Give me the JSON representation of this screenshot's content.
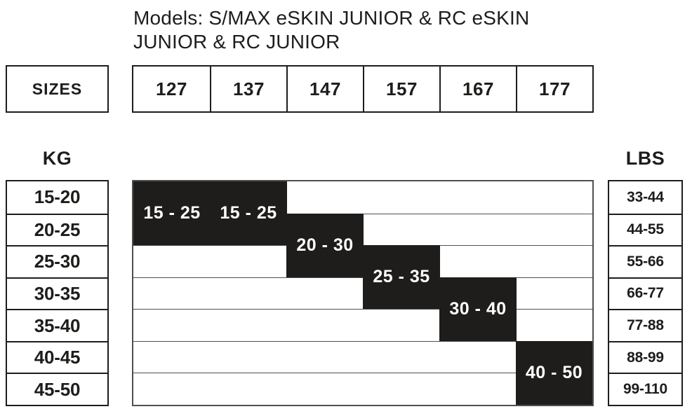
{
  "title": {
    "line1": "Models: S/MAX eSKIN JUNIOR & RC eSKIN",
    "line2": "JUNIOR & RC JUNIOR"
  },
  "sizes_header": "SIZES",
  "kg_header": "KG",
  "lbs_header": "LBS",
  "colors": {
    "ink": "#1d1d1b",
    "grid_line": "#4f4f4f",
    "block_bg": "#1f1c1c",
    "block_text": "#ffffff"
  },
  "chart_data": {
    "type": "table",
    "title": "Models: S/MAX eSKIN JUNIOR & RC eSKIN JUNIOR & RC JUNIOR",
    "columns": [
      "127",
      "137",
      "147",
      "157",
      "167",
      "177"
    ],
    "kg_rows": [
      "15-20",
      "20-25",
      "25-30",
      "30-35",
      "35-40",
      "40-45",
      "45-50"
    ],
    "lbs_rows": [
      "33-44",
      "44-55",
      "55-66",
      "66-77",
      "77-88",
      "88-99",
      "99-110"
    ],
    "blocks": [
      {
        "size": "127",
        "label": "15 - 25",
        "kg_min": 15,
        "kg_max": 25,
        "col": 0,
        "row_start": 0,
        "row_span": 2
      },
      {
        "size": "137",
        "label": "15 - 25",
        "kg_min": 15,
        "kg_max": 25,
        "col": 1,
        "row_start": 0,
        "row_span": 2
      },
      {
        "size": "147",
        "label": "20 - 30",
        "kg_min": 20,
        "kg_max": 30,
        "col": 2,
        "row_start": 1,
        "row_span": 2
      },
      {
        "size": "157",
        "label": "25 - 35",
        "kg_min": 25,
        "kg_max": 35,
        "col": 3,
        "row_start": 2,
        "row_span": 2
      },
      {
        "size": "167",
        "label": "30 - 40",
        "kg_min": 30,
        "kg_max": 40,
        "col": 4,
        "row_start": 3,
        "row_span": 2
      },
      {
        "size": "177",
        "label": "40 - 50",
        "kg_min": 40,
        "kg_max": 50,
        "col": 5,
        "row_start": 5,
        "row_span": 2
      }
    ],
    "layout_hints": {
      "grid_rows": 7,
      "grid_cols": 6,
      "note": "black blocks mark recommended weight range per ski length"
    }
  }
}
